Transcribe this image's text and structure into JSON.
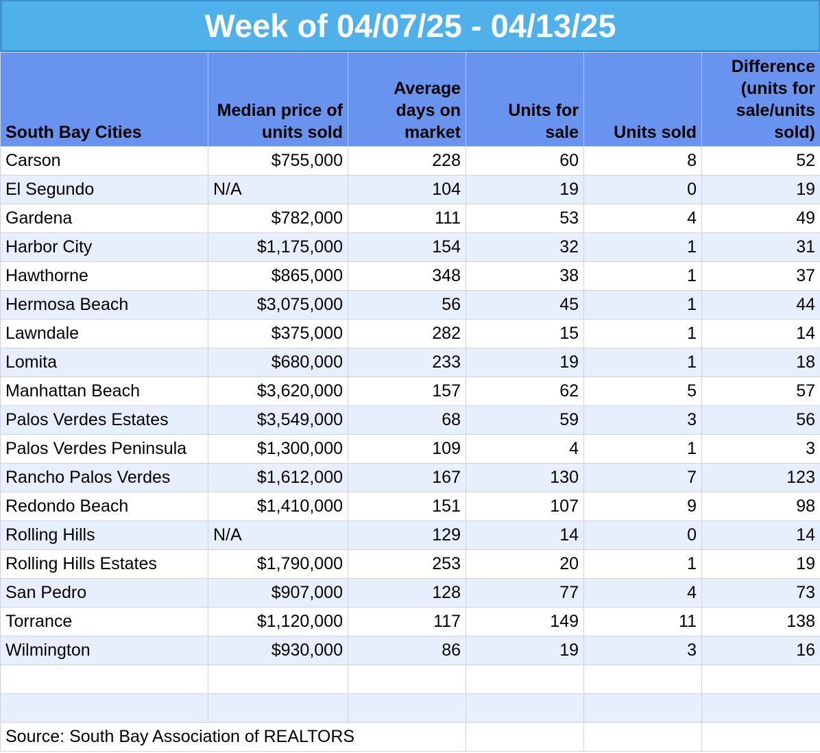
{
  "title": "Week of 04/07/25 - 04/13/25",
  "headers": [
    "South Bay Cities",
    "Median price of units sold",
    "Average days on market",
    "Units for sale",
    "Units sold",
    "Difference (units for sale/units sold)"
  ],
  "rows": [
    [
      "Carson",
      "$755,000",
      "228",
      "60",
      "8",
      "52"
    ],
    [
      "El Segundo",
      "N/A",
      "104",
      "19",
      "0",
      "19"
    ],
    [
      "Gardena",
      "$782,000",
      "111",
      "53",
      "4",
      "49"
    ],
    [
      "Harbor City",
      "$1,175,000",
      "154",
      "32",
      "1",
      "31"
    ],
    [
      "Hawthorne",
      "$865,000",
      "348",
      "38",
      "1",
      "37"
    ],
    [
      "Hermosa Beach",
      "$3,075,000",
      "56",
      "45",
      "1",
      "44"
    ],
    [
      "Lawndale",
      "$375,000",
      "282",
      "15",
      "1",
      "14"
    ],
    [
      "Lomita",
      "$680,000",
      "233",
      "19",
      "1",
      "18"
    ],
    [
      "Manhattan Beach",
      "$3,620,000",
      "157",
      "62",
      "5",
      "57"
    ],
    [
      "Palos Verdes Estates",
      "$3,549,000",
      "68",
      "59",
      "3",
      "56"
    ],
    [
      "Palos Verdes Peninsula",
      "$1,300,000",
      "109",
      "4",
      "1",
      "3"
    ],
    [
      "Rancho Palos Verdes",
      "$1,612,000",
      "167",
      "130",
      "7",
      "123"
    ],
    [
      "Redondo Beach",
      "$1,410,000",
      "151",
      "107",
      "9",
      "98"
    ],
    [
      "Rolling Hills",
      "N/A",
      "129",
      "14",
      "0",
      "14"
    ],
    [
      "Rolling Hills Estates",
      "$1,790,000",
      "253",
      "20",
      "1",
      "19"
    ],
    [
      "San Pedro",
      "$907,000",
      "128",
      "77",
      "4",
      "73"
    ],
    [
      "Torrance",
      "$1,120,000",
      "117",
      "149",
      "11",
      "138"
    ],
    [
      "Wilmington",
      "$930,000",
      "86",
      "19",
      "3",
      "16"
    ]
  ],
  "source": "Source: South Bay Association of REALTORS"
}
